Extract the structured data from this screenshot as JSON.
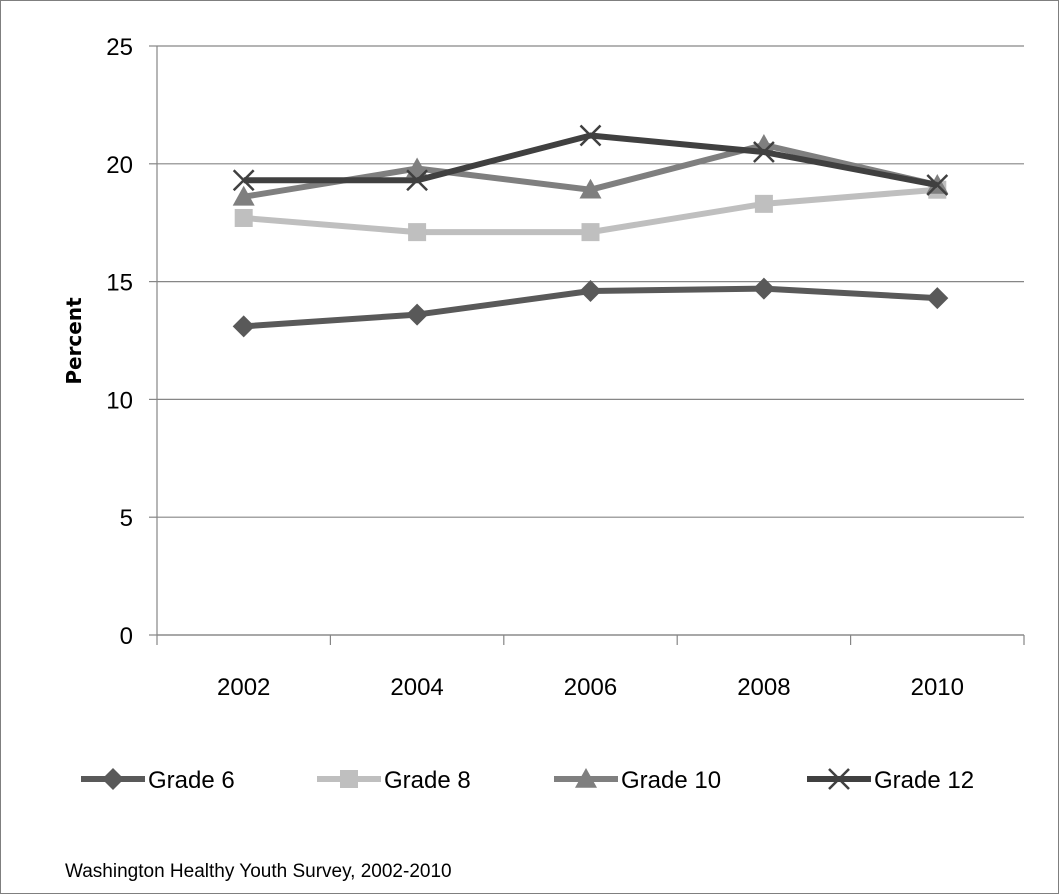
{
  "chart_data": {
    "type": "line",
    "title": "",
    "xlabel": "",
    "ylabel": "Percent",
    "ylim": [
      0,
      25
    ],
    "yticks": [
      "0",
      "5",
      "10",
      "15",
      "20",
      "25"
    ],
    "categories": [
      "2002",
      "2004",
      "2006",
      "2008",
      "2010"
    ],
    "series": [
      {
        "name": "Grade 6",
        "marker": "diamond",
        "color": "#595959",
        "values": [
          13.1,
          13.6,
          14.6,
          14.7,
          14.3
        ]
      },
      {
        "name": "Grade 8",
        "marker": "square",
        "color": "#bfbfbf",
        "values": [
          17.7,
          17.1,
          17.1,
          18.3,
          18.9
        ]
      },
      {
        "name": "Grade 10",
        "marker": "triangle",
        "color": "#7f7f7f",
        "values": [
          18.6,
          19.8,
          18.9,
          20.8,
          19.1
        ]
      },
      {
        "name": "Grade 12",
        "marker": "x",
        "color": "#404040",
        "values": [
          19.3,
          19.3,
          21.2,
          20.5,
          19.1
        ]
      }
    ],
    "grid": true,
    "legend": "bottom"
  },
  "source_note": "Washington Healthy Youth Survey, 2002-2010"
}
